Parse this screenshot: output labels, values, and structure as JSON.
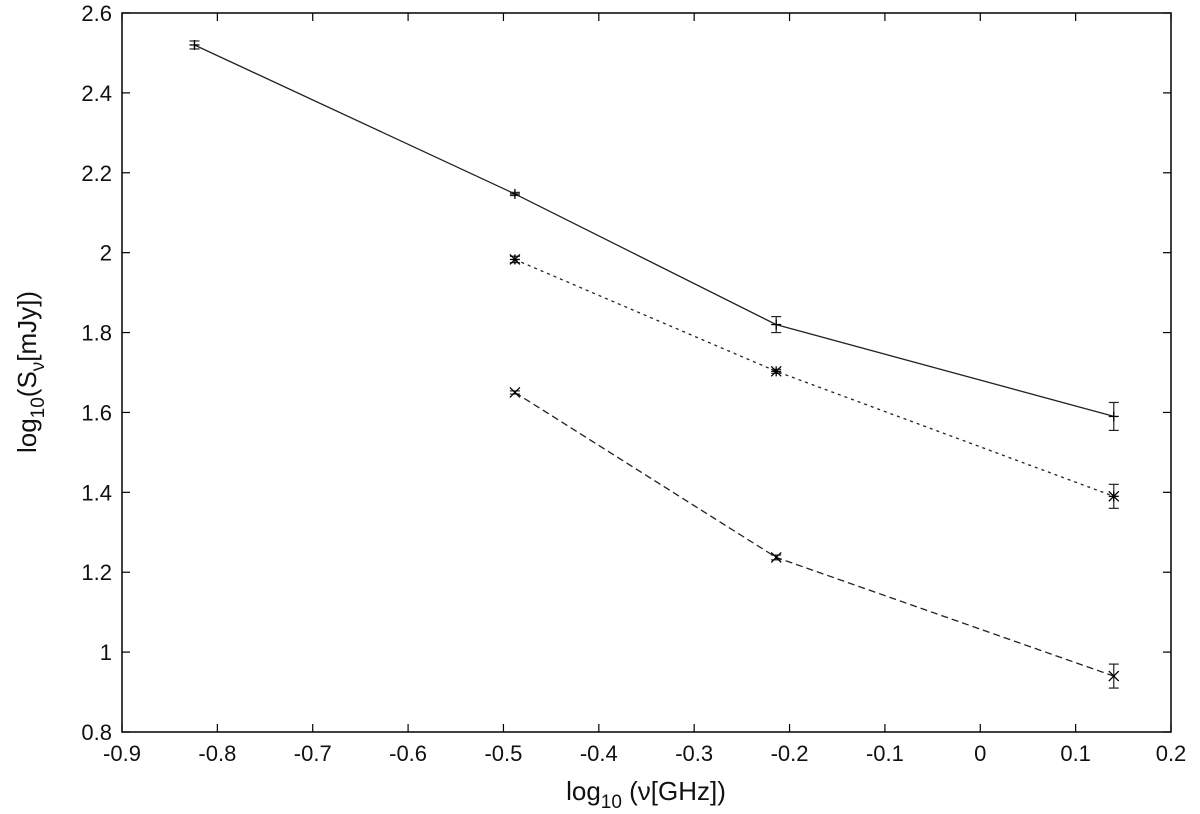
{
  "chart_data": {
    "type": "line",
    "xlabel": {
      "base": "log",
      "sub": "10",
      "rest": " (ν[GHz])"
    },
    "ylabel": {
      "base": "log",
      "sub": "10",
      "mid": "(S",
      "sub2": "ν",
      "rest": "[mJy])"
    },
    "xlim": [
      -0.9,
      0.2
    ],
    "ylim": [
      0.8,
      2.6
    ],
    "xticks": [
      "-0.9",
      "-0.8",
      "-0.7",
      "-0.6",
      "-0.5",
      "-0.4",
      "-0.3",
      "-0.2",
      "-0.1",
      "0",
      "0.1",
      "0.2"
    ],
    "yticks": [
      "0.8",
      "1",
      "1.2",
      "1.4",
      "1.6",
      "1.8",
      "2",
      "2.2",
      "2.4",
      "2.6"
    ],
    "grid": false,
    "series": [
      {
        "line_style": "solid",
        "marker": "plus",
        "points": [
          {
            "x": -0.824,
            "y": 2.52,
            "err": 0.01
          },
          {
            "x": -0.488,
            "y": 2.147,
            "err": 0.004
          },
          {
            "x": -0.214,
            "y": 1.82,
            "err": 0.02
          },
          {
            "x": 0.14,
            "y": 1.59,
            "err": 0.035
          }
        ]
      },
      {
        "line_style": "dotted",
        "marker": "star",
        "points": [
          {
            "x": -0.488,
            "y": 1.983,
            "err": 0.008
          },
          {
            "x": -0.214,
            "y": 1.703,
            "err": 0.005
          },
          {
            "x": 0.14,
            "y": 1.39,
            "err": 0.03
          }
        ]
      },
      {
        "line_style": "dashed",
        "marker": "cross",
        "points": [
          {
            "x": -0.488,
            "y": 1.65,
            "err": 0.004
          },
          {
            "x": -0.214,
            "y": 1.237,
            "err": 0.006
          },
          {
            "x": 0.14,
            "y": 0.94,
            "err": 0.03
          }
        ]
      }
    ]
  }
}
